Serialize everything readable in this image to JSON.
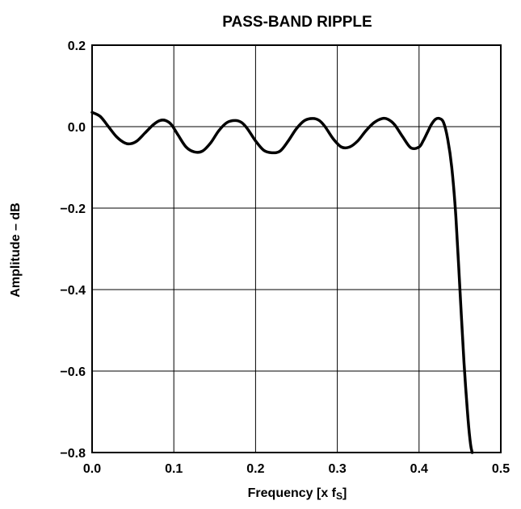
{
  "chart_data": {
    "type": "line",
    "title": "PASS-BAND RIPPLE",
    "xlabel": "Frequency [x f",
    "xlabel_subscript": "S",
    "xlabel_suffix": "]",
    "ylabel": "Amplitude – dB",
    "xlim": [
      0.0,
      0.5
    ],
    "ylim": [
      -0.8,
      0.2
    ],
    "x_ticks": [
      "0.0",
      "0.1",
      "0.2",
      "0.3",
      "0.4",
      "0.5"
    ],
    "y_ticks": [
      "0.2",
      "0.0",
      "−0.2",
      "−0.4",
      "−0.6",
      "−0.8"
    ],
    "grid": true,
    "series": [
      {
        "x": [
          0.0,
          0.01,
          0.02,
          0.03,
          0.04,
          0.047,
          0.055,
          0.065,
          0.075,
          0.083,
          0.09,
          0.097,
          0.105,
          0.115,
          0.125,
          0.135,
          0.145,
          0.155,
          0.165,
          0.175,
          0.183,
          0.19,
          0.2,
          0.21,
          0.22,
          0.23,
          0.24,
          0.25,
          0.26,
          0.27,
          0.278,
          0.285,
          0.295,
          0.305,
          0.315,
          0.325,
          0.335,
          0.345,
          0.355,
          0.362,
          0.37,
          0.38,
          0.39,
          0.4,
          0.405,
          0.41,
          0.415,
          0.42,
          0.425,
          0.43,
          0.435,
          0.44,
          0.445,
          0.45,
          0.455,
          0.46,
          0.463,
          0.465
        ],
        "y": [
          0.035,
          0.025,
          0.0,
          -0.025,
          -0.04,
          -0.042,
          -0.035,
          -0.015,
          0.005,
          0.015,
          0.015,
          0.005,
          -0.02,
          -0.05,
          -0.062,
          -0.06,
          -0.04,
          -0.01,
          0.01,
          0.015,
          0.01,
          -0.005,
          -0.035,
          -0.058,
          -0.064,
          -0.06,
          -0.035,
          -0.005,
          0.015,
          0.02,
          0.015,
          0.0,
          -0.03,
          -0.05,
          -0.05,
          -0.035,
          -0.01,
          0.01,
          0.02,
          0.018,
          0.005,
          -0.025,
          -0.052,
          -0.05,
          -0.035,
          -0.015,
          0.005,
          0.018,
          0.02,
          0.01,
          -0.03,
          -0.1,
          -0.22,
          -0.4,
          -0.58,
          -0.72,
          -0.78,
          -0.8
        ]
      }
    ]
  }
}
